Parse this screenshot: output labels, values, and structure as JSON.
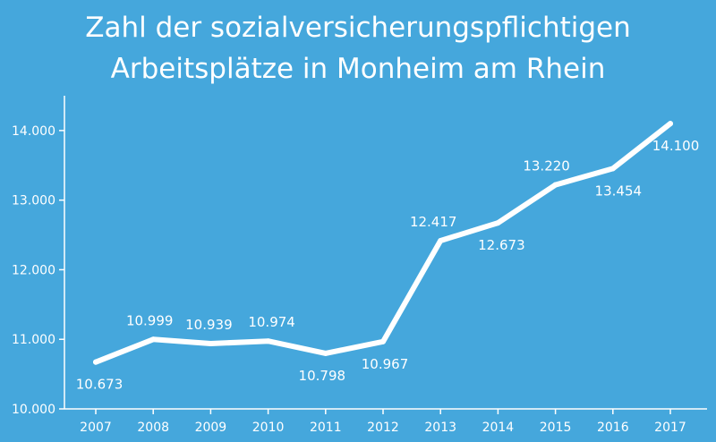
{
  "chart_data": {
    "type": "line",
    "title_lines": [
      "Zahl der sozialversicherungspflichtigen",
      "Arbeitsplätze in Monheim am Rhein"
    ],
    "xlabel": "",
    "ylabel": "",
    "categories": [
      "2007",
      "2008",
      "2009",
      "2010",
      "2011",
      "2012",
      "2013",
      "2014",
      "2015",
      "2016",
      "2017"
    ],
    "series": [
      {
        "values": [
          10673,
          10999,
          10939,
          10974,
          10798,
          10967,
          12417,
          12673,
          13220,
          13454,
          14100
        ],
        "labels": [
          "10.673",
          "10.999",
          "10.939",
          "10.974",
          "10.798",
          "10.967",
          "12.417",
          "12.673",
          "13.220",
          "13.454",
          "14.100"
        ]
      }
    ],
    "ylim": [
      10000,
      14500
    ],
    "yticks": [
      10000,
      11000,
      12000,
      13000,
      14000
    ],
    "ytick_labels": [
      "10.000",
      "11.000",
      "12.000",
      "13.000",
      "14.000"
    ],
    "grid": false,
    "colors": {
      "background": "#45a7dc",
      "line": "#ffffff",
      "text": "#ffffff"
    }
  }
}
